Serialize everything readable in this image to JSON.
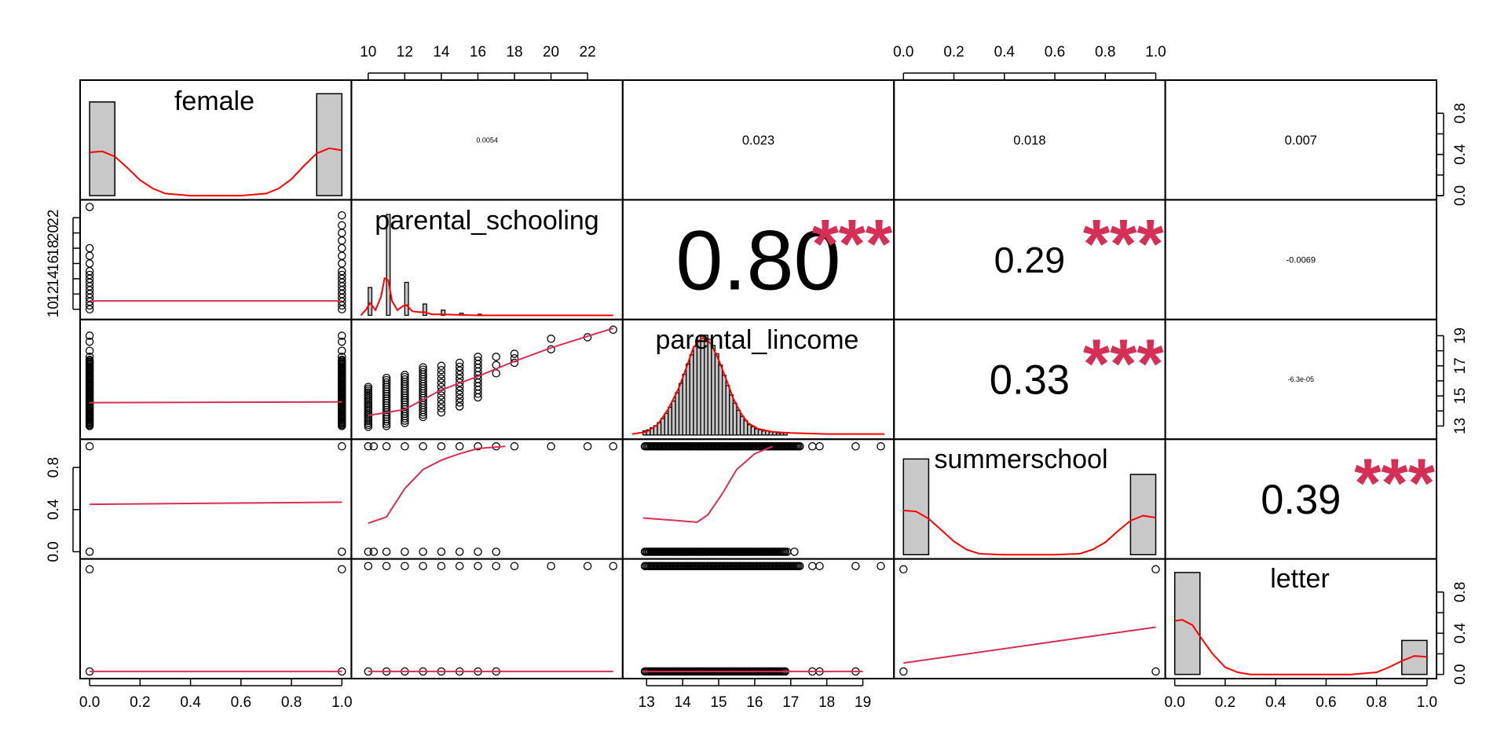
{
  "chart_data": {
    "type": "scatter",
    "variables": [
      "female",
      "parental_schooling",
      "parental_lincome",
      "summerschool",
      "letter"
    ],
    "axes": {
      "female": {
        "range": [
          0,
          1
        ],
        "ticks": [
          "0.0",
          "0.2",
          "0.4",
          "0.6",
          "0.8",
          "1.0"
        ],
        "position": "bottom"
      },
      "parental_schooling": {
        "range": [
          9.6,
          23.4
        ],
        "ticks": [
          "10",
          "12",
          "14",
          "16",
          "18",
          "20",
          "22"
        ],
        "position": "top-and-left"
      },
      "parental_lincome": {
        "range": [
          12.6,
          19.6
        ],
        "ticks": [
          "13",
          "15",
          "17",
          "19"
        ],
        "ticks_bottom": [
          "13",
          "14",
          "15",
          "16",
          "17",
          "18",
          "19"
        ],
        "position": "bottom-and-right"
      },
      "summerschool": {
        "range": [
          0,
          1
        ],
        "ticks": [
          "0.0",
          "0.2",
          "0.4",
          "0.6",
          "0.8",
          "1.0"
        ],
        "ticks_left": [
          "0.0",
          "0.4",
          "0.8"
        ],
        "position": "top-and-left"
      },
      "letter": {
        "range": [
          0,
          1
        ],
        "ticks": [
          "0.0",
          "0.2",
          "0.4",
          "0.6",
          "0.8",
          "1.0"
        ],
        "position": "bottom-and-right"
      },
      "diag_right_first": {
        "ticks": [
          "0.0",
          "0.4",
          "0.8"
        ]
      }
    },
    "correlations": [
      {
        "pair": [
          "female",
          "parental_schooling"
        ],
        "value": "0.0054",
        "stars": "",
        "size": 0.3
      },
      {
        "pair": [
          "female",
          "parental_lincome"
        ],
        "value": "0.023",
        "stars": "",
        "size": 0.55
      },
      {
        "pair": [
          "female",
          "summerschool"
        ],
        "value": "0.018",
        "stars": "",
        "size": 0.55
      },
      {
        "pair": [
          "female",
          "letter"
        ],
        "value": "0.007",
        "stars": "",
        "size": 0.55
      },
      {
        "pair": [
          "parental_schooling",
          "parental_lincome"
        ],
        "value": "0.80",
        "stars": "***",
        "size": 3.6
      },
      {
        "pair": [
          "parental_schooling",
          "summerschool"
        ],
        "value": "0.29",
        "stars": "***",
        "size": 1.55
      },
      {
        "pair": [
          "parental_schooling",
          "letter"
        ],
        "value": "-0.0069",
        "stars": "",
        "size": 0.37
      },
      {
        "pair": [
          "parental_lincome",
          "summerschool"
        ],
        "value": "0.33",
        "stars": "***",
        "size": 1.75
      },
      {
        "pair": [
          "parental_lincome",
          "letter"
        ],
        "value": "-6.3e-05",
        "stars": "",
        "size": 0.3
      },
      {
        "pair": [
          "summerschool",
          "letter"
        ],
        "value": "0.39",
        "stars": "***",
        "size": 1.75
      }
    ],
    "histograms": {
      "female": {
        "bins": [
          [
            0,
            0.1,
            0.91
          ],
          [
            0.9,
            1.0,
            0.99
          ]
        ],
        "ylim": [
          0,
          1.0
        ]
      },
      "parental_schooling": {
        "bins": [
          [
            10,
            10.2,
            0.27
          ],
          [
            11,
            11.2,
            0.98
          ],
          [
            12,
            12.2,
            0.32
          ],
          [
            13,
            13.2,
            0.11
          ],
          [
            14,
            14.2,
            0.05
          ],
          [
            15,
            15.2,
            0.02
          ],
          [
            16,
            16.2,
            0.01
          ]
        ],
        "ylim": [
          0,
          1.0
        ]
      },
      "parental_lincome": {
        "bins": [
          [
            12.9,
            13.0,
            0.04
          ],
          [
            13.0,
            13.1,
            0.05
          ],
          [
            13.1,
            13.2,
            0.07
          ],
          [
            13.2,
            13.3,
            0.09
          ],
          [
            13.3,
            13.4,
            0.12
          ],
          [
            13.4,
            13.5,
            0.16
          ],
          [
            13.5,
            13.6,
            0.21
          ],
          [
            13.6,
            13.7,
            0.27
          ],
          [
            13.7,
            13.8,
            0.33
          ],
          [
            13.8,
            13.9,
            0.41
          ],
          [
            13.9,
            14.0,
            0.5
          ],
          [
            14.0,
            14.1,
            0.59
          ],
          [
            14.1,
            14.2,
            0.69
          ],
          [
            14.2,
            14.3,
            0.78
          ],
          [
            14.3,
            14.4,
            0.86
          ],
          [
            14.4,
            14.5,
            0.92
          ],
          [
            14.5,
            14.6,
            0.96
          ],
          [
            14.6,
            14.7,
            0.97
          ],
          [
            14.7,
            14.8,
            0.93
          ],
          [
            14.8,
            14.9,
            0.87
          ],
          [
            14.9,
            15.0,
            0.79
          ],
          [
            15.0,
            15.1,
            0.68
          ],
          [
            15.1,
            15.2,
            0.58
          ],
          [
            15.2,
            15.3,
            0.48
          ],
          [
            15.3,
            15.4,
            0.39
          ],
          [
            15.4,
            15.5,
            0.31
          ],
          [
            15.5,
            15.6,
            0.24
          ],
          [
            15.6,
            15.7,
            0.18
          ],
          [
            15.7,
            15.8,
            0.14
          ],
          [
            15.8,
            15.9,
            0.1
          ],
          [
            15.9,
            16.0,
            0.08
          ],
          [
            16.0,
            16.1,
            0.06
          ],
          [
            16.1,
            16.2,
            0.05
          ],
          [
            16.2,
            16.3,
            0.04
          ],
          [
            16.3,
            16.4,
            0.04
          ],
          [
            16.4,
            16.5,
            0.03
          ],
          [
            16.5,
            16.6,
            0.03
          ],
          [
            16.6,
            16.7,
            0.02
          ],
          [
            16.7,
            16.8,
            0.02
          ],
          [
            16.8,
            16.9,
            0.02
          ]
        ],
        "ylim": [
          0,
          1.0
        ]
      },
      "summerschool": {
        "bins": [
          [
            0,
            0.1,
            0.93
          ],
          [
            0.9,
            1.0,
            0.78
          ]
        ],
        "ylim": [
          0,
          1.0
        ]
      },
      "letter": {
        "bins": [
          [
            0,
            0.1,
            0.99
          ],
          [
            0.9,
            1.0,
            0.33
          ]
        ],
        "ylim": [
          0,
          1.0
        ]
      }
    },
    "densities": {
      "female": [
        [
          0,
          0.42
        ],
        [
          0.05,
          0.43
        ],
        [
          0.1,
          0.38
        ],
        [
          0.15,
          0.27
        ],
        [
          0.2,
          0.15
        ],
        [
          0.25,
          0.07
        ],
        [
          0.3,
          0.02
        ],
        [
          0.4,
          0
        ],
        [
          0.6,
          0
        ],
        [
          0.7,
          0.02
        ],
        [
          0.75,
          0.07
        ],
        [
          0.8,
          0.16
        ],
        [
          0.85,
          0.29
        ],
        [
          0.9,
          0.41
        ],
        [
          0.95,
          0.46
        ],
        [
          1.0,
          0.44
        ]
      ],
      "parental_schooling": [
        [
          9.6,
          0
        ],
        [
          9.9,
          0.06
        ],
        [
          10.1,
          0.12
        ],
        [
          10.4,
          0.05
        ],
        [
          10.7,
          0.18
        ],
        [
          10.9,
          0.36
        ],
        [
          11.1,
          0.34
        ],
        [
          11.3,
          0.14
        ],
        [
          11.6,
          0.05
        ],
        [
          11.9,
          0.09
        ],
        [
          12.1,
          0.1
        ],
        [
          12.4,
          0.04
        ],
        [
          12.8,
          0.03
        ],
        [
          13.1,
          0.03
        ],
        [
          13.5,
          0.01
        ],
        [
          14,
          0.01
        ],
        [
          16,
          0
        ],
        [
          23.4,
          0
        ]
      ],
      "parental_lincome": [
        [
          12.6,
          0.01
        ],
        [
          13.0,
          0.03
        ],
        [
          13.3,
          0.1
        ],
        [
          13.6,
          0.25
        ],
        [
          13.9,
          0.46
        ],
        [
          14.1,
          0.65
        ],
        [
          14.3,
          0.85
        ],
        [
          14.5,
          0.93
        ],
        [
          14.6,
          0.95
        ],
        [
          14.8,
          0.88
        ],
        [
          15.0,
          0.73
        ],
        [
          15.2,
          0.55
        ],
        [
          15.4,
          0.36
        ],
        [
          15.6,
          0.22
        ],
        [
          15.8,
          0.12
        ],
        [
          16.1,
          0.06
        ],
        [
          16.5,
          0.03
        ],
        [
          17.0,
          0.02
        ],
        [
          18.0,
          0.01
        ],
        [
          19.6,
          0.01
        ]
      ],
      "summerschool": [
        [
          0,
          0.43
        ],
        [
          0.05,
          0.42
        ],
        [
          0.1,
          0.35
        ],
        [
          0.15,
          0.24
        ],
        [
          0.2,
          0.13
        ],
        [
          0.25,
          0.05
        ],
        [
          0.3,
          0.01
        ],
        [
          0.4,
          0
        ],
        [
          0.6,
          0
        ],
        [
          0.7,
          0.01
        ],
        [
          0.75,
          0.05
        ],
        [
          0.8,
          0.12
        ],
        [
          0.85,
          0.23
        ],
        [
          0.9,
          0.33
        ],
        [
          0.95,
          0.38
        ],
        [
          1.0,
          0.36
        ]
      ],
      "letter": [
        [
          0,
          0.52
        ],
        [
          0.03,
          0.53
        ],
        [
          0.07,
          0.48
        ],
        [
          0.1,
          0.37
        ],
        [
          0.15,
          0.2
        ],
        [
          0.2,
          0.07
        ],
        [
          0.25,
          0.02
        ],
        [
          0.3,
          0
        ],
        [
          0.7,
          0
        ],
        [
          0.8,
          0.02
        ],
        [
          0.85,
          0.07
        ],
        [
          0.9,
          0.13
        ],
        [
          0.95,
          0.18
        ],
        [
          1.0,
          0.17
        ]
      ]
    },
    "scatter_panels": [
      {
        "row": "parental_schooling",
        "col": "female",
        "points": [
          [
            0,
            10
          ],
          [
            0,
            10.5
          ],
          [
            0,
            11
          ],
          [
            0,
            11.5
          ],
          [
            0,
            12
          ],
          [
            0,
            12.5
          ],
          [
            0,
            13
          ],
          [
            0,
            13.5
          ],
          [
            0,
            14
          ],
          [
            0,
            14.5
          ],
          [
            0,
            15
          ],
          [
            0,
            16
          ],
          [
            0,
            17
          ],
          [
            0,
            18
          ],
          [
            0,
            23.4
          ],
          [
            1,
            10
          ],
          [
            1,
            10.5
          ],
          [
            1,
            11
          ],
          [
            1,
            11.5
          ],
          [
            1,
            12
          ],
          [
            1,
            12.5
          ],
          [
            1,
            13
          ],
          [
            1,
            13.5
          ],
          [
            1,
            14
          ],
          [
            1,
            14.5
          ],
          [
            1,
            15
          ],
          [
            1,
            16
          ],
          [
            1,
            17
          ],
          [
            1,
            18
          ],
          [
            1,
            19
          ],
          [
            1,
            20
          ],
          [
            1,
            21
          ],
          [
            1,
            22.3
          ]
        ],
        "fit": [
          [
            0,
            11.1
          ],
          [
            1,
            11.1
          ]
        ]
      },
      {
        "row": "parental_lincome",
        "col": "female",
        "points": "dense columns at female=0 and female=1 for parental_lincome 12.9–17.4, extremes up to 19.0",
        "fit": [
          [
            0,
            14.55
          ],
          [
            1,
            14.6
          ]
        ]
      },
      {
        "row": "parental_lincome",
        "col": "parental_schooling",
        "points": "clusters at each parental_schooling value 10–18 spanning roughly 13–16, with extremes at 20–23",
        "fit": [
          [
            10,
            13.7
          ],
          [
            12,
            14.1
          ],
          [
            14,
            15.4
          ],
          [
            16,
            16.3
          ],
          [
            18,
            17.3
          ],
          [
            20,
            18.2
          ],
          [
            23.4,
            19.5
          ]
        ]
      },
      {
        "row": "summerschool",
        "col": "female",
        "points": [
          [
            0,
            0
          ],
          [
            0,
            1
          ],
          [
            1,
            0
          ],
          [
            1,
            1
          ]
        ],
        "fit": [
          [
            0,
            0.45
          ],
          [
            1,
            0.47
          ]
        ]
      },
      {
        "row": "summerschool",
        "col": "parental_schooling",
        "points": "rows at summerschool=0 and summerschool=1 for parental_schooling 10–23",
        "fit": [
          [
            10,
            0.27
          ],
          [
            11,
            0.33
          ],
          [
            12,
            0.6
          ],
          [
            13,
            0.78
          ],
          [
            14,
            0.87
          ],
          [
            15,
            0.93
          ],
          [
            16,
            0.98
          ],
          [
            17.5,
            1.0
          ]
        ]
      },
      {
        "row": "summerschool",
        "col": "parental_lincome",
        "points": "dense rows at summerschool=0 and 1 across parental_lincome 12.9–19.5",
        "fit": [
          [
            12.9,
            0.32
          ],
          [
            13.7,
            0.3
          ],
          [
            14.4,
            0.28
          ],
          [
            14.7,
            0.35
          ],
          [
            15.1,
            0.55
          ],
          [
            15.5,
            0.78
          ],
          [
            16.0,
            0.93
          ],
          [
            16.5,
            1.0
          ]
        ]
      },
      {
        "row": "letter",
        "col": "female",
        "points": [
          [
            0,
            0
          ],
          [
            0,
            0.97
          ],
          [
            1,
            0
          ],
          [
            1,
            0.97
          ]
        ],
        "fit": [
          [
            0,
            0
          ],
          [
            1,
            0
          ]
        ]
      },
      {
        "row": "letter",
        "col": "parental_schooling",
        "points": "rows at letter=0 and letter=1 for parental_schooling 10–23",
        "fit": [
          [
            10,
            0
          ],
          [
            23.4,
            0
          ]
        ]
      },
      {
        "row": "letter",
        "col": "parental_lincome",
        "points": "dense rows at letter=0 and letter=1 across parental_lincome 12.9–19",
        "fit": [
          [
            12.9,
            0
          ],
          [
            19,
            0
          ]
        ]
      },
      {
        "row": "letter",
        "col": "summerschool",
        "points": [
          [
            0,
            0
          ],
          [
            0,
            0.97
          ],
          [
            1,
            0
          ],
          [
            1,
            0.97
          ]
        ],
        "fit": [
          [
            0,
            0.08
          ],
          [
            1,
            0.42
          ]
        ]
      }
    ],
    "colors": {
      "density": "#ff0000",
      "fit": "#d62f55",
      "stars": "#d62f55",
      "hist_fill": "#c8c8c8"
    }
  }
}
